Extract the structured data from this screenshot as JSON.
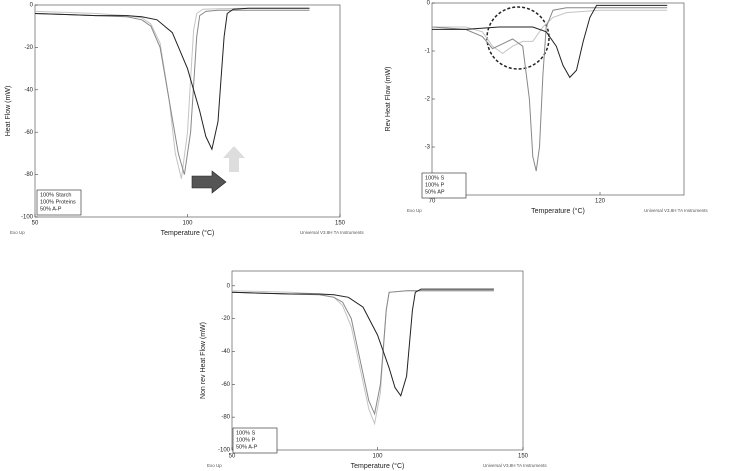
{
  "chart_data": [
    {
      "type": "line",
      "y_label": "Heat Flow (mW)",
      "x_label": "Temperature (°C)",
      "left_note": "Exo Up",
      "right_note": "Universal V3.8H TA Instruments",
      "xlim": [
        50,
        150
      ],
      "xticks": [
        50,
        100,
        150
      ],
      "ylim": [
        -100,
        0
      ],
      "yticks": [
        0,
        -20,
        -40,
        -60,
        -80,
        -100
      ],
      "series": [
        {
          "name": "100% Starch",
          "color": "#c4c4c4",
          "x": [
            50,
            60,
            70,
            80,
            85,
            88,
            91,
            94,
            96,
            98,
            100,
            101,
            102,
            103,
            105,
            110,
            120,
            140
          ],
          "values": [
            -3,
            -3.5,
            -4,
            -5,
            -6,
            -9,
            -18,
            -45,
            -70,
            -82,
            -60,
            -35,
            -12,
            -4,
            -2,
            -1.8,
            -1.5,
            -1.5
          ]
        },
        {
          "name": "100% Proteins",
          "color": "#888888",
          "x": [
            50,
            60,
            70,
            80,
            85,
            88,
            91,
            94,
            97,
            99,
            101,
            102,
            103,
            104,
            106,
            110,
            120,
            140
          ],
          "values": [
            -4,
            -4.5,
            -5,
            -5.5,
            -7,
            -10,
            -20,
            -45,
            -70,
            -80,
            -60,
            -38,
            -15,
            -5,
            -3,
            -2.5,
            -2.5,
            -2.5
          ]
        },
        {
          "name": "50% A-P",
          "color": "#222222",
          "x": [
            50,
            60,
            70,
            80,
            85,
            90,
            95,
            100,
            104,
            106,
            108,
            110,
            111,
            112,
            113,
            115,
            120,
            140
          ],
          "values": [
            -4,
            -4.5,
            -5,
            -5,
            -5.5,
            -7,
            -13,
            -30,
            -50,
            -62,
            -68,
            -55,
            -35,
            -15,
            -4,
            -2,
            -1.5,
            -1.5
          ]
        }
      ]
    },
    {
      "type": "line",
      "y_label": "Rev Heat Flow (mW)",
      "x_label": "Temperature (°C)",
      "left_note": "Exo Up",
      "right_note": "Universal V3.8H TA Instruments",
      "xlim": [
        70,
        145
      ],
      "xticks": [
        70,
        120
      ],
      "ylim": [
        -4,
        0
      ],
      "yticks": [
        0,
        -1,
        -2,
        -3,
        -4
      ],
      "series": [
        {
          "name": "100% S",
          "color": "#c4c4c4",
          "x": [
            70,
            80,
            85,
            88,
            91,
            94,
            97,
            100,
            103,
            106,
            110,
            120,
            140
          ],
          "values": [
            -0.5,
            -0.5,
            -0.6,
            -0.9,
            -1.05,
            -0.9,
            -0.8,
            -0.8,
            -0.5,
            -0.3,
            -0.2,
            -0.15,
            -0.15
          ]
        },
        {
          "name": "100% P",
          "color": "#888888",
          "x": [
            70,
            80,
            85,
            88,
            91,
            94,
            97,
            99,
            100,
            101,
            102,
            103,
            104,
            106,
            110,
            120,
            140
          ],
          "values": [
            -0.5,
            -0.55,
            -0.7,
            -0.95,
            -0.85,
            -0.75,
            -0.9,
            -2,
            -3.2,
            -3.5,
            -3,
            -1.5,
            -0.5,
            -0.15,
            -0.1,
            -0.1,
            -0.1
          ]
        },
        {
          "name": "50% AP",
          "color": "#222222",
          "x": [
            70,
            80,
            90,
            100,
            104,
            107,
            109,
            111,
            113,
            115,
            117,
            119,
            125,
            140
          ],
          "values": [
            -0.55,
            -0.55,
            -0.5,
            -0.5,
            -0.6,
            -0.9,
            -1.3,
            -1.55,
            -1.4,
            -0.8,
            -0.3,
            -0.05,
            -0.05,
            -0.05
          ]
        }
      ]
    },
    {
      "type": "line",
      "y_label": "Non rev Heat Flow (mW)",
      "x_label": "Temperature (°C)",
      "left_note": "Exo Up",
      "right_note": "Universal V3.8H TA Instruments",
      "xlim": [
        50,
        150
      ],
      "xticks": [
        50,
        100,
        150
      ],
      "ylim": [
        -100,
        9
      ],
      "yticks": [
        0,
        -20,
        -40,
        -60,
        -80,
        -100
      ],
      "series": [
        {
          "name": "100% S",
          "color": "#c4c4c4",
          "x": [
            50,
            70,
            80,
            85,
            88,
            91,
            94,
            97,
            99,
            101,
            102,
            103,
            104,
            110,
            130,
            140
          ],
          "values": [
            -3,
            -4,
            -5,
            -7,
            -12,
            -25,
            -50,
            -75,
            -84,
            -65,
            -40,
            -15,
            -4,
            -3,
            -3,
            -3
          ]
        },
        {
          "name": "100% P",
          "color": "#888888",
          "x": [
            50,
            70,
            80,
            85,
            88,
            91,
            94,
            97,
            99,
            101,
            102,
            103,
            104,
            110,
            130,
            140
          ],
          "values": [
            -4,
            -5,
            -5.5,
            -7,
            -10,
            -20,
            -45,
            -70,
            -78,
            -60,
            -38,
            -15,
            -4,
            -3,
            -3,
            -3
          ]
        },
        {
          "name": "50% A-P",
          "color": "#222222",
          "x": [
            50,
            70,
            80,
            85,
            90,
            95,
            100,
            104,
            106,
            108,
            110,
            111,
            112,
            113,
            115,
            130,
            140
          ],
          "values": [
            -4,
            -5,
            -5,
            -5.5,
            -7,
            -13,
            -30,
            -50,
            -62,
            -67,
            -55,
            -35,
            -15,
            -4,
            -2,
            -2,
            -2
          ]
        }
      ]
    }
  ]
}
